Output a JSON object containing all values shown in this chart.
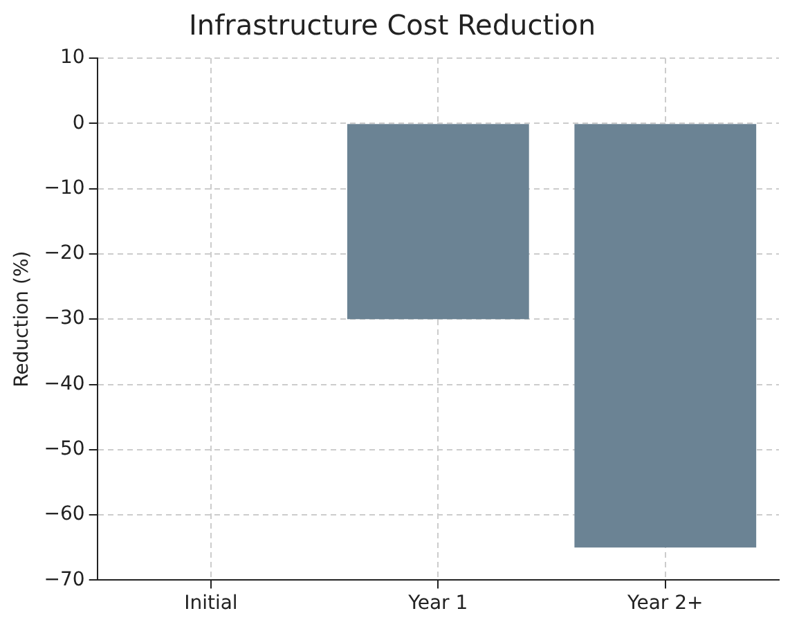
{
  "chart_data": {
    "type": "bar",
    "title": "Infrastructure Cost Reduction",
    "ylabel": "Reduction (%)",
    "categories": [
      "Initial",
      "Year 1",
      "Year 2+"
    ],
    "values": [
      0,
      -30,
      -65
    ],
    "color": "#6b8394",
    "ylim": [
      -70,
      10
    ],
    "yticks": [
      {
        "value": -70,
        "label": "−70"
      },
      {
        "value": -60,
        "label": "−60"
      },
      {
        "value": -50,
        "label": "−50"
      },
      {
        "value": -40,
        "label": "−40"
      },
      {
        "value": -30,
        "label": "−30"
      },
      {
        "value": -20,
        "label": "−20"
      },
      {
        "value": -10,
        "label": "−10"
      },
      0,
      10
    ],
    "grid": true
  }
}
